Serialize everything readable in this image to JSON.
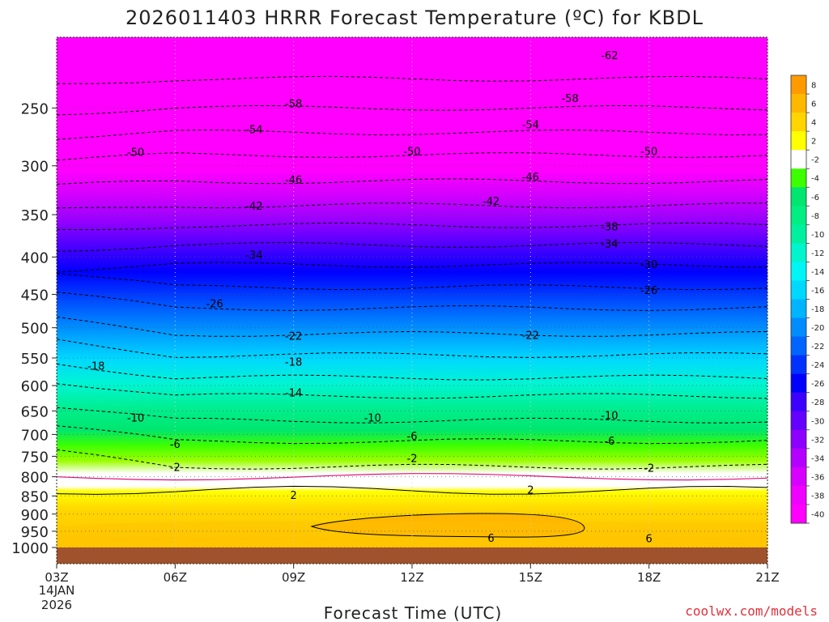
{
  "chart_data": {
    "type": "heatmap",
    "title": "2026011403 HRRR Forecast Temperature (ºC) for KBDL",
    "xlabel": "Forecast Time (UTC)",
    "x_ticks": [
      "03Z",
      "06Z",
      "09Z",
      "12Z",
      "15Z",
      "18Z",
      "21Z"
    ],
    "x_date": [
      "14JAN",
      "2026"
    ],
    "y_ticks": [
      250,
      300,
      350,
      400,
      450,
      500,
      550,
      600,
      650,
      700,
      750,
      800,
      850,
      900,
      950,
      1000
    ],
    "y_range_hpa": [
      1000,
      200
    ],
    "y_scale": "log-pressure",
    "grid": true,
    "colorbar_labels": [
      8,
      6,
      4,
      2,
      -2,
      -4,
      -6,
      -8,
      -10,
      -12,
      -14,
      -16,
      -18,
      -20,
      -22,
      -24,
      -26,
      -28,
      -30,
      -32,
      -34,
      -36,
      -38,
      -40
    ],
    "colorbar_colors": [
      "#ff9b00",
      "#ffb800",
      "#ffd400",
      "#ffff00",
      "#ffffff",
      "#3cff00",
      "#00e66e",
      "#00ee82",
      "#00f0a0",
      "#00f5cd",
      "#00f5f5",
      "#00d8ff",
      "#00b4ff",
      "#008cff",
      "#0064ff",
      "#0032ff",
      "#0000ff",
      "#3c00ff",
      "#6400ff",
      "#8c00ff",
      "#b400ff",
      "#d700ff",
      "#f000ff",
      "#ff00ff"
    ],
    "contour_labels": [
      {
        "value": "-62",
        "hour": 17.0,
        "p": 212
      },
      {
        "value": "-58",
        "hour": 9.0,
        "p": 247
      },
      {
        "value": "-58",
        "hour": 16.0,
        "p": 243
      },
      {
        "value": "-54",
        "hour": 8.0,
        "p": 268
      },
      {
        "value": "-54",
        "hour": 15.0,
        "p": 264
      },
      {
        "value": "-50",
        "hour": 5.0,
        "p": 288
      },
      {
        "value": "-50",
        "hour": 12.0,
        "p": 287
      },
      {
        "value": "-50",
        "hour": 18.0,
        "p": 287
      },
      {
        "value": "-46",
        "hour": 9.0,
        "p": 314
      },
      {
        "value": "-46",
        "hour": 15.0,
        "p": 311
      },
      {
        "value": "-42",
        "hour": 8.0,
        "p": 341
      },
      {
        "value": "-42",
        "hour": 14.0,
        "p": 336
      },
      {
        "value": "-38",
        "hour": 17.0,
        "p": 364
      },
      {
        "value": "-34",
        "hour": 8.0,
        "p": 398
      },
      {
        "value": "-34",
        "hour": 17.0,
        "p": 384
      },
      {
        "value": "-30",
        "hour": 18.0,
        "p": 410
      },
      {
        "value": "-26",
        "hour": 7.0,
        "p": 464
      },
      {
        "value": "-26",
        "hour": 18.0,
        "p": 445
      },
      {
        "value": "-22",
        "hour": 9.0,
        "p": 514
      },
      {
        "value": "-22",
        "hour": 15.0,
        "p": 513
      },
      {
        "value": "-18",
        "hour": 4.0,
        "p": 565
      },
      {
        "value": "-18",
        "hour": 9.0,
        "p": 558
      },
      {
        "value": "-14",
        "hour": 9.0,
        "p": 615
      },
      {
        "value": "-10",
        "hour": 5.0,
        "p": 665
      },
      {
        "value": "-10",
        "hour": 11.0,
        "p": 665
      },
      {
        "value": "-10",
        "hour": 17.0,
        "p": 660
      },
      {
        "value": "-6",
        "hour": 6.0,
        "p": 723
      },
      {
        "value": "-6",
        "hour": 12.0,
        "p": 705
      },
      {
        "value": "-6",
        "hour": 17.0,
        "p": 716
      },
      {
        "value": "-2",
        "hour": 6.0,
        "p": 778
      },
      {
        "value": "-2",
        "hour": 12.0,
        "p": 756
      },
      {
        "value": "-2",
        "hour": 18.0,
        "p": 780
      },
      {
        "value": "2",
        "hour": 9.0,
        "p": 849
      },
      {
        "value": "2",
        "hour": 15.0,
        "p": 835
      },
      {
        "value": "6",
        "hour": 14.0,
        "p": 972
      },
      {
        "value": "6",
        "hour": 18.0,
        "p": 973
      }
    ]
  },
  "credit": "coolwx.com/models"
}
